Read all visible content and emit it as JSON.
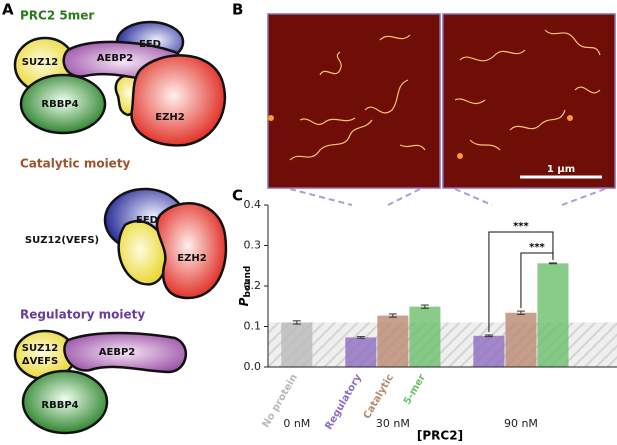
{
  "panel_labels": [
    "A",
    "B",
    "C"
  ],
  "diagram": {
    "sections": [
      {
        "title": "PRC2 5mer",
        "labels": [
          "SUZ12",
          "AEBP2",
          "EED",
          "RBBP4",
          "EZH2"
        ]
      },
      {
        "title": "Catalytic moiety",
        "labels": [
          "EED",
          "SUZ12(VEFS)",
          "EZH2"
        ]
      },
      {
        "title": "Regulatory moiety",
        "labels": [
          "SUZ12",
          "ΔVEFS",
          "AEBP2",
          "RBBP4"
        ]
      }
    ]
  },
  "micrograph": {
    "scale_bar": "1 μm"
  },
  "chart_data": {
    "type": "bar",
    "ylabel": "P",
    "ylabel_sub": "bound",
    "xlabel": "[PRC2]",
    "categories": [
      "0 nM",
      "30 nM",
      "90 nM"
    ],
    "series": [
      {
        "name": "No protein",
        "color": "#b9b9b9",
        "values": [
          0.11,
          null,
          null
        ],
        "errors": [
          0.004,
          null,
          null
        ]
      },
      {
        "name": "Regulatory",
        "color": "#8e6cc0",
        "values": [
          null,
          0.073,
          0.077
        ],
        "errors": [
          null,
          0.002,
          0.002
        ]
      },
      {
        "name": "Catalytic",
        "color": "#b98a70",
        "values": [
          null,
          0.127,
          0.134
        ],
        "errors": [
          null,
          0.004,
          0.004
        ]
      },
      {
        "name": "5-mer",
        "color": "#6cbf6c",
        "values": [
          null,
          0.149,
          0.256
        ],
        "errors": [
          null,
          0.004,
          0.001
        ]
      }
    ],
    "annotations": [
      "***",
      "***"
    ],
    "ylim": [
      0,
      0.4
    ],
    "yticks": [
      {
        "value": 0,
        "label": "0.0"
      },
      0.1,
      0.2,
      0.3,
      0.4
    ]
  }
}
